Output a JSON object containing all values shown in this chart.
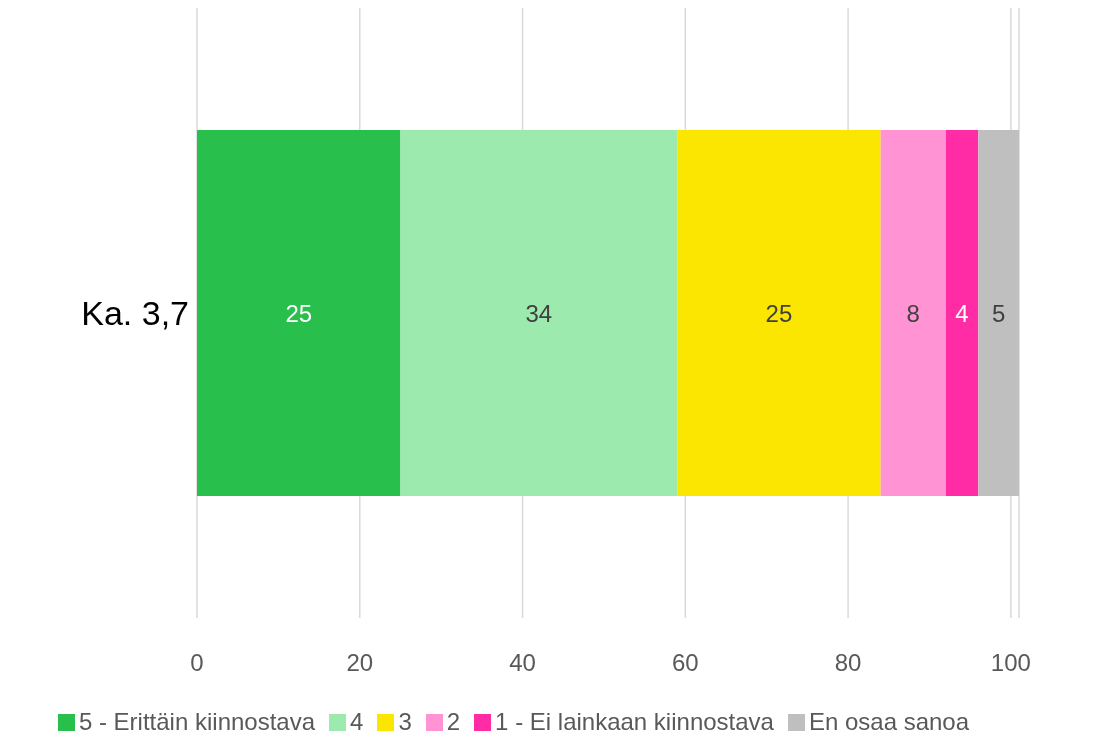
{
  "chart_data": {
    "type": "bar",
    "orientation": "horizontal",
    "stacked": true,
    "categories": [
      "Ka. 3,7"
    ],
    "series": [
      {
        "name": "5 - Erittäin kiinnostava",
        "color": "#28bf4c",
        "values": [
          25
        ]
      },
      {
        "name": "4",
        "color": "#9deaae",
        "values": [
          34
        ]
      },
      {
        "name": "3",
        "color": "#fae600",
        "values": [
          25
        ]
      },
      {
        "name": "2",
        "color": "#ff93d3",
        "values": [
          8
        ]
      },
      {
        "name": "1 - Ei lainkaan kiinnostava",
        "color": "#ff2ca6",
        "values": [
          4
        ]
      },
      {
        "name": "En osaa sanoa",
        "color": "#bfbfbf",
        "values": [
          5
        ]
      }
    ],
    "data_labels": true,
    "xlim": [
      0,
      101
    ],
    "xticks": [
      0,
      20,
      40,
      60,
      80,
      100
    ],
    "grid": "x",
    "legend": "bottom"
  }
}
